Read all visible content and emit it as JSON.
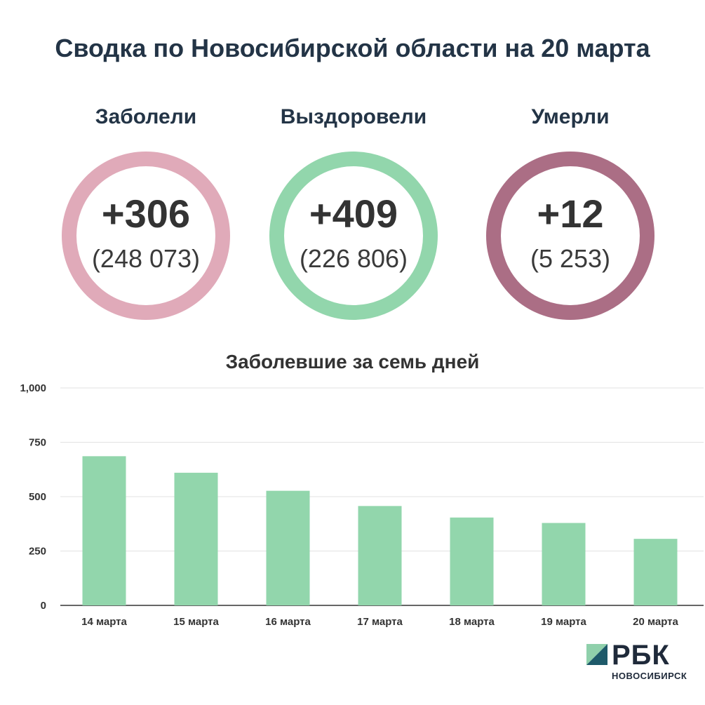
{
  "header": {
    "title": "Сводка по Новосибирской области на 20 марта"
  },
  "stats": [
    {
      "label": "Заболели",
      "delta": "+306",
      "total": "(248 073)",
      "color": "#e0aab9"
    },
    {
      "label": "Выздоровели",
      "delta": "+409",
      "total": "(226 806)",
      "color": "#92d6ac"
    },
    {
      "label": "Умерли",
      "delta": "+12",
      "total": "(5 253)",
      "color": "#ab6e85"
    }
  ],
  "chart_data": {
    "type": "bar",
    "title": "Заболевшие за семь дней",
    "categories": [
      "14 марта",
      "15 марта",
      "16 марта",
      "17 марта",
      "18 марта",
      "19 марта",
      "20 марта"
    ],
    "values": [
      686,
      610,
      527,
      457,
      404,
      379,
      306
    ],
    "ylim": [
      0,
      1000
    ],
    "yticks": [
      0,
      250,
      500,
      750,
      1000
    ],
    "ytick_labels": [
      "0",
      "250",
      "500",
      "750",
      "1,000"
    ],
    "grid": true,
    "bar_color": "#92d6ac",
    "xlabel": "",
    "ylabel": ""
  },
  "brand": {
    "name": "РБК",
    "city": "НОВОСИБИРСК"
  }
}
